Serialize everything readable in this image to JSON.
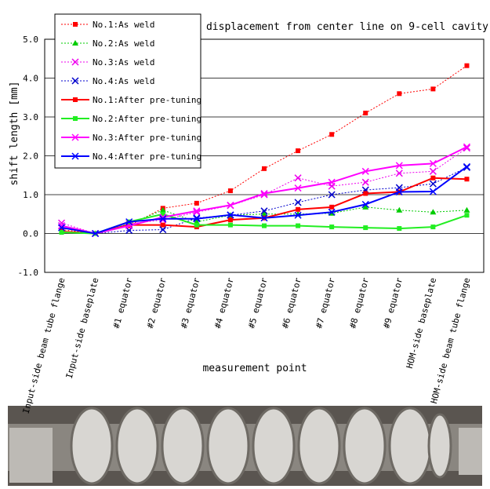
{
  "chart_data": {
    "type": "line",
    "title": "displacement from center line on 9-cell cavity",
    "x_label": "measurement point",
    "y_label": "shift length [mm]",
    "categories": [
      "Input-side beam tube flange",
      "Input-side baseplate",
      "#1 equator",
      "#2 equator",
      "#3 equator",
      "#4 equator",
      "#5 equator",
      "#6 equator",
      "#7 equator",
      "#8 equator",
      "#9 equator",
      "HOM-side baseplate",
      "HOM-side beam tube flange"
    ],
    "ylim": [
      -1,
      5
    ],
    "yticks": [
      {
        "value": -1,
        "label": "-1.0"
      },
      {
        "value": 0,
        "label": "0.0"
      },
      {
        "value": 1,
        "label": "1.0"
      },
      {
        "value": 2,
        "label": "2.0"
      },
      {
        "value": 3,
        "label": "3.0"
      },
      {
        "value": 4,
        "label": "4.0"
      },
      {
        "value": 5,
        "label": "5.0"
      }
    ],
    "grid": true,
    "legend": "upper left",
    "series": [
      {
        "name": "No.1:As weld",
        "color": "#ff0000",
        "line_style": "dotted",
        "marker": "square",
        "values": [
          0.1,
          0,
          0.2,
          0.65,
          0.78,
          1.1,
          1.67,
          2.13,
          2.55,
          3.1,
          3.6,
          3.72,
          4.32
        ]
      },
      {
        "name": "No.2:As weld",
        "color": "#00cc00",
        "line_style": "dotted",
        "marker": "triangle",
        "values": [
          0.05,
          0,
          0.25,
          0.6,
          0.3,
          0.47,
          0.5,
          0.5,
          0.52,
          0.68,
          0.6,
          0.55,
          0.6
        ]
      },
      {
        "name": "No.3:As weld",
        "color": "#ee00ee",
        "line_style": "dotted",
        "marker": "x",
        "values": [
          0.27,
          0,
          0.25,
          0.35,
          0.55,
          0.72,
          1.0,
          1.43,
          1.22,
          1.32,
          1.55,
          1.6,
          2.2
        ]
      },
      {
        "name": "No.4:As weld",
        "color": "#0000cc",
        "line_style": "dotted",
        "marker": "x",
        "values": [
          0.2,
          0,
          0.08,
          0.1,
          0.4,
          0.47,
          0.58,
          0.8,
          1.0,
          1.12,
          1.18,
          1.28,
          1.7
        ]
      },
      {
        "name": "No.1:After pre-tuning",
        "color": "#ff0000",
        "line_style": "solid",
        "marker": "square",
        "values": [
          0.05,
          0,
          0.22,
          0.22,
          0.17,
          0.35,
          0.4,
          0.62,
          0.68,
          1.03,
          1.07,
          1.43,
          1.4
        ]
      },
      {
        "name": "No.2:After pre-tuning",
        "color": "#22ee22",
        "line_style": "solid",
        "marker": "square",
        "values": [
          0.03,
          0,
          0.3,
          0.5,
          0.22,
          0.22,
          0.2,
          0.2,
          0.17,
          0.15,
          0.13,
          0.17,
          0.47
        ]
      },
      {
        "name": "No.3:After pre-tuning",
        "color": "#ff00ff",
        "line_style": "solid",
        "marker": "x",
        "values": [
          0.2,
          0,
          0.2,
          0.42,
          0.58,
          0.73,
          1.03,
          1.17,
          1.32,
          1.6,
          1.75,
          1.8,
          2.23
        ]
      },
      {
        "name": "No.4:After pre-tuning",
        "color": "#0000ff",
        "line_style": "solid",
        "marker": "x",
        "values": [
          0.15,
          0,
          0.3,
          0.38,
          0.38,
          0.48,
          0.4,
          0.47,
          0.55,
          0.75,
          1.07,
          1.08,
          1.72
        ]
      }
    ]
  }
}
